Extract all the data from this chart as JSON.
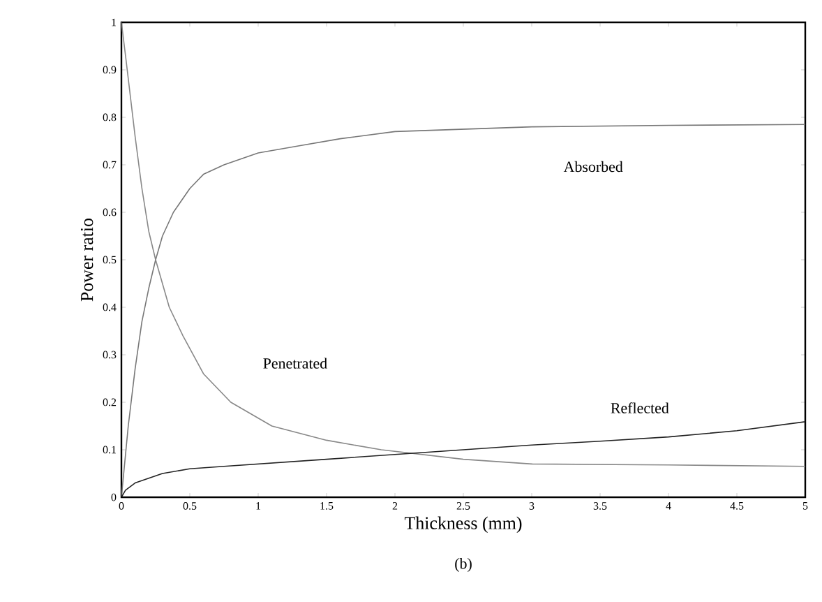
{
  "chart_data": {
    "type": "line",
    "xlabel": "Thickness (mm)",
    "ylabel": "Power ratio",
    "xlim": [
      0,
      5
    ],
    "ylim": [
      0,
      1
    ],
    "xticks": [
      0,
      0.5,
      1,
      1.5,
      2,
      2.5,
      3,
      3.5,
      4,
      4.5,
      5
    ],
    "yticks": [
      0,
      0.1,
      0.2,
      0.3,
      0.4,
      0.5,
      0.6,
      0.7,
      0.8,
      0.9,
      1
    ],
    "grid": false,
    "legend": false,
    "marker": "none",
    "line_style": "solid",
    "series": [
      {
        "name": "Absorbed",
        "color": "#777777",
        "x": [
          0,
          0.05,
          0.1,
          0.15,
          0.2,
          0.25,
          0.3,
          0.38,
          0.5,
          0.6,
          0.75,
          1,
          1.3,
          1.6,
          2,
          2.5,
          3,
          4,
          5
        ],
        "values": [
          0,
          0.15,
          0.27,
          0.37,
          0.44,
          0.5,
          0.55,
          0.6,
          0.65,
          0.68,
          0.7,
          0.725,
          0.74,
          0.755,
          0.77,
          0.775,
          0.78,
          0.783,
          0.785
        ]
      },
      {
        "name": "Penetrated",
        "color": "#888888",
        "x": [
          0,
          0.03,
          0.1,
          0.15,
          0.2,
          0.25,
          0.3,
          0.35,
          0.45,
          0.6,
          0.8,
          1.1,
          1.5,
          1.9,
          2.5,
          3,
          4,
          5
        ],
        "values": [
          1,
          0.93,
          0.76,
          0.65,
          0.56,
          0.5,
          0.45,
          0.4,
          0.34,
          0.26,
          0.2,
          0.15,
          0.12,
          0.1,
          0.08,
          0.07,
          0.068,
          0.065
        ]
      },
      {
        "name": "Reflected",
        "color": "#222222",
        "x": [
          0,
          0.03,
          0.1,
          0.2,
          0.3,
          0.5,
          0.75,
          1,
          1.5,
          2,
          2.5,
          3,
          3.5,
          4,
          4.5,
          5
        ],
        "values": [
          0,
          0.015,
          0.03,
          0.04,
          0.05,
          0.06,
          0.065,
          0.07,
          0.08,
          0.09,
          0.1,
          0.11,
          0.118,
          0.127,
          0.14,
          0.159
        ]
      }
    ],
    "annotations": [
      "(b)"
    ]
  }
}
